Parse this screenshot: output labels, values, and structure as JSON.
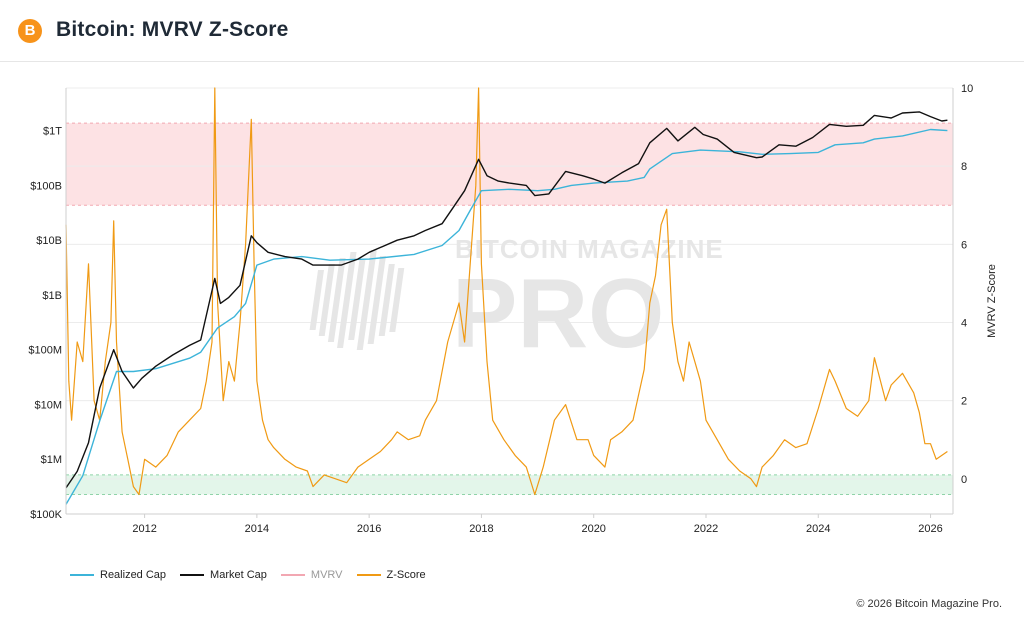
{
  "header": {
    "logo_symbol": "B",
    "title": "Bitcoin: MVRV Z-Score"
  },
  "footer": {
    "copyright": "© 2026 Bitcoin Magazine Pro."
  },
  "watermark": {
    "line1": "BITCOIN MAGAZINE",
    "line2": "PRO"
  },
  "colors": {
    "realized_cap": "#3cb4d9",
    "market_cap": "#111111",
    "mvrv": "#f2a7b2",
    "z_score": "#f09a14",
    "high_band": "#fde2e4",
    "low_band": "#e3f6ea",
    "brand": "#f7931a"
  },
  "chart_data": {
    "type": "line",
    "title": "Bitcoin: MVRV Z-Score",
    "x_range": [
      2010.6,
      2026.4
    ],
    "x_ticks": [
      "2012",
      "2014",
      "2016",
      "2018",
      "2020",
      "2022",
      "2024",
      "2026"
    ],
    "x_tick_values": [
      2012,
      2014,
      2016,
      2018,
      2020,
      2022,
      2024,
      2026
    ],
    "y_left": {
      "scale": "log",
      "range": [
        100000,
        6000000000000
      ],
      "ticks": [
        "$100K",
        "$1M",
        "$10M",
        "$100M",
        "$1B",
        "$10B",
        "$100B",
        "$1T"
      ],
      "tick_values": [
        100000,
        1000000,
        10000000,
        100000000,
        1000000000,
        10000000000,
        100000000000,
        1000000000000
      ]
    },
    "y_right": {
      "label": "MVRV Z-Score",
      "range": [
        -0.9,
        10
      ],
      "ticks": [
        "0",
        "2",
        "4",
        "6",
        "8",
        "10"
      ],
      "tick_values": [
        0,
        2,
        4,
        6,
        8,
        10
      ]
    },
    "bands": {
      "high": [
        7,
        9.1
      ],
      "low": [
        -0.4,
        0.1
      ]
    },
    "legend": [
      "Realized Cap",
      "Market Cap",
      "MVRV",
      "Z-Score"
    ],
    "series": [
      {
        "name": "Market Cap",
        "axis": "left",
        "x": [
          2010.6,
          2010.8,
          2011.0,
          2011.2,
          2011.45,
          2011.6,
          2011.8,
          2011.95,
          2012.2,
          2012.5,
          2012.8,
          2013.0,
          2013.25,
          2013.35,
          2013.5,
          2013.7,
          2013.9,
          2014.0,
          2014.2,
          2014.5,
          2014.8,
          2015.0,
          2015.2,
          2015.5,
          2015.8,
          2016.0,
          2016.5,
          2016.8,
          2017.0,
          2017.3,
          2017.5,
          2017.7,
          2017.95,
          2018.1,
          2018.3,
          2018.5,
          2018.8,
          2018.95,
          2019.2,
          2019.5,
          2019.8,
          2020.0,
          2020.2,
          2020.5,
          2020.8,
          2021.0,
          2021.3,
          2021.5,
          2021.8,
          2021.95,
          2022.2,
          2022.5,
          2022.9,
          2023.0,
          2023.3,
          2023.6,
          2023.9,
          2024.2,
          2024.5,
          2024.8,
          2025.0,
          2025.3,
          2025.5,
          2025.8,
          2026.0,
          2026.2,
          2026.3
        ],
        "y": [
          300000,
          600000,
          2000000,
          20000000,
          100000000,
          40000000,
          20000000,
          30000000,
          50000000,
          80000000,
          120000000,
          150000000,
          2000000000,
          700000000,
          900000000,
          1500000000,
          12000000000,
          9000000000,
          6000000000,
          5000000000,
          4500000000,
          3500000000,
          3500000000,
          3500000000,
          4500000000,
          6000000000,
          10000000000,
          12000000000,
          15000000000,
          20000000000,
          40000000000,
          80000000000,
          300000000000,
          150000000000,
          120000000000,
          110000000000,
          100000000000,
          65000000000,
          70000000000,
          180000000000,
          150000000000,
          130000000000,
          110000000000,
          170000000000,
          250000000000,
          600000000000,
          1100000000000,
          650000000000,
          1150000000000,
          850000000000,
          700000000000,
          400000000000,
          320000000000,
          330000000000,
          550000000000,
          520000000000,
          750000000000,
          1300000000000,
          1200000000000,
          1250000000000,
          1900000000000,
          1700000000000,
          2100000000000,
          2200000000000,
          1800000000000,
          1500000000000,
          1550000000000
        ]
      },
      {
        "name": "Realized Cap",
        "axis": "left",
        "x": [
          2010.6,
          2010.9,
          2011.2,
          2011.5,
          2011.8,
          2012.2,
          2012.8,
          2013.0,
          2013.3,
          2013.6,
          2013.8,
          2014.0,
          2014.3,
          2014.8,
          2015.3,
          2016.0,
          2016.8,
          2017.3,
          2017.6,
          2017.8,
          2018.0,
          2018.5,
          2019.0,
          2019.3,
          2019.6,
          2020.0,
          2020.6,
          2020.9,
          2021.0,
          2021.4,
          2021.9,
          2022.4,
          2022.6,
          2023.0,
          2023.5,
          2024.0,
          2024.3,
          2024.8,
          2025.0,
          2025.5,
          2026.0,
          2026.3
        ],
        "y": [
          150000,
          500000,
          5000000,
          40000000,
          40000000,
          45000000,
          70000000,
          90000000,
          250000000,
          400000000,
          700000000,
          3500000000,
          4500000000,
          5000000000,
          4300000000,
          4500000000,
          5500000000,
          8000000000,
          15000000000,
          35000000000,
          80000000000,
          85000000000,
          80000000000,
          85000000000,
          100000000000,
          110000000000,
          120000000000,
          140000000000,
          200000000000,
          380000000000,
          440000000000,
          420000000000,
          410000000000,
          370000000000,
          380000000000,
          400000000000,
          550000000000,
          600000000000,
          700000000000,
          800000000000,
          1050000000000,
          1000000000000
        ]
      },
      {
        "name": "Z-Score",
        "axis": "right",
        "x": [
          2010.6,
          2010.65,
          2010.7,
          2010.8,
          2010.9,
          2011.0,
          2011.1,
          2011.2,
          2011.3,
          2011.4,
          2011.45,
          2011.5,
          2011.6,
          2011.7,
          2011.8,
          2011.9,
          2012.0,
          2012.2,
          2012.4,
          2012.6,
          2012.8,
          2013.0,
          2013.1,
          2013.2,
          2013.25,
          2013.3,
          2013.4,
          2013.5,
          2013.6,
          2013.7,
          2013.8,
          2013.9,
          2013.95,
          2014.0,
          2014.1,
          2014.2,
          2014.3,
          2014.5,
          2014.7,
          2014.9,
          2015.0,
          2015.2,
          2015.4,
          2015.6,
          2015.8,
          2016.0,
          2016.2,
          2016.4,
          2016.5,
          2016.7,
          2016.9,
          2017.0,
          2017.2,
          2017.4,
          2017.6,
          2017.7,
          2017.8,
          2017.9,
          2017.95,
          2018.0,
          2018.1,
          2018.2,
          2018.4,
          2018.6,
          2018.8,
          2018.95,
          2019.1,
          2019.3,
          2019.5,
          2019.7,
          2019.9,
          2020.0,
          2020.2,
          2020.3,
          2020.5,
          2020.7,
          2020.9,
          2021.0,
          2021.1,
          2021.2,
          2021.3,
          2021.4,
          2021.5,
          2021.6,
          2021.7,
          2021.8,
          2021.9,
          2022.0,
          2022.2,
          2022.4,
          2022.6,
          2022.8,
          2022.9,
          2023.0,
          2023.2,
          2023.4,
          2023.6,
          2023.8,
          2024.0,
          2024.2,
          2024.3,
          2024.5,
          2024.7,
          2024.9,
          2025.0,
          2025.2,
          2025.3,
          2025.5,
          2025.7,
          2025.8,
          2025.9,
          2026.0,
          2026.1,
          2026.2,
          2026.3
        ],
        "y": [
          6.5,
          2.5,
          1.5,
          3.5,
          3.0,
          5.5,
          2.0,
          1.5,
          3.0,
          4.0,
          6.6,
          3.5,
          1.2,
          0.5,
          -0.2,
          -0.4,
          0.5,
          0.3,
          0.6,
          1.2,
          1.5,
          1.8,
          2.5,
          3.5,
          10,
          4.5,
          2.0,
          3.0,
          2.5,
          4.0,
          6.0,
          9.2,
          5.5,
          2.5,
          1.5,
          1.0,
          0.8,
          0.5,
          0.3,
          0.2,
          -0.2,
          0.1,
          0.0,
          -0.1,
          0.3,
          0.5,
          0.7,
          1.0,
          1.2,
          1.0,
          1.1,
          1.5,
          2.0,
          3.5,
          4.5,
          3.5,
          5.5,
          7.5,
          10,
          5.5,
          3.0,
          1.5,
          1.0,
          0.6,
          0.3,
          -0.4,
          0.3,
          1.5,
          1.9,
          1.0,
          1.0,
          0.6,
          0.3,
          1.0,
          1.2,
          1.5,
          2.8,
          4.5,
          5.2,
          6.5,
          6.9,
          4.0,
          3.0,
          2.5,
          3.5,
          3.0,
          2.5,
          1.5,
          1.0,
          0.5,
          0.2,
          0.0,
          -0.2,
          0.3,
          0.6,
          1.0,
          0.8,
          0.9,
          1.8,
          2.8,
          2.5,
          1.8,
          1.6,
          2.0,
          3.1,
          2.0,
          2.4,
          2.7,
          2.2,
          1.7,
          0.9,
          0.9,
          0.5,
          0.6,
          0.7
        ]
      }
    ]
  }
}
